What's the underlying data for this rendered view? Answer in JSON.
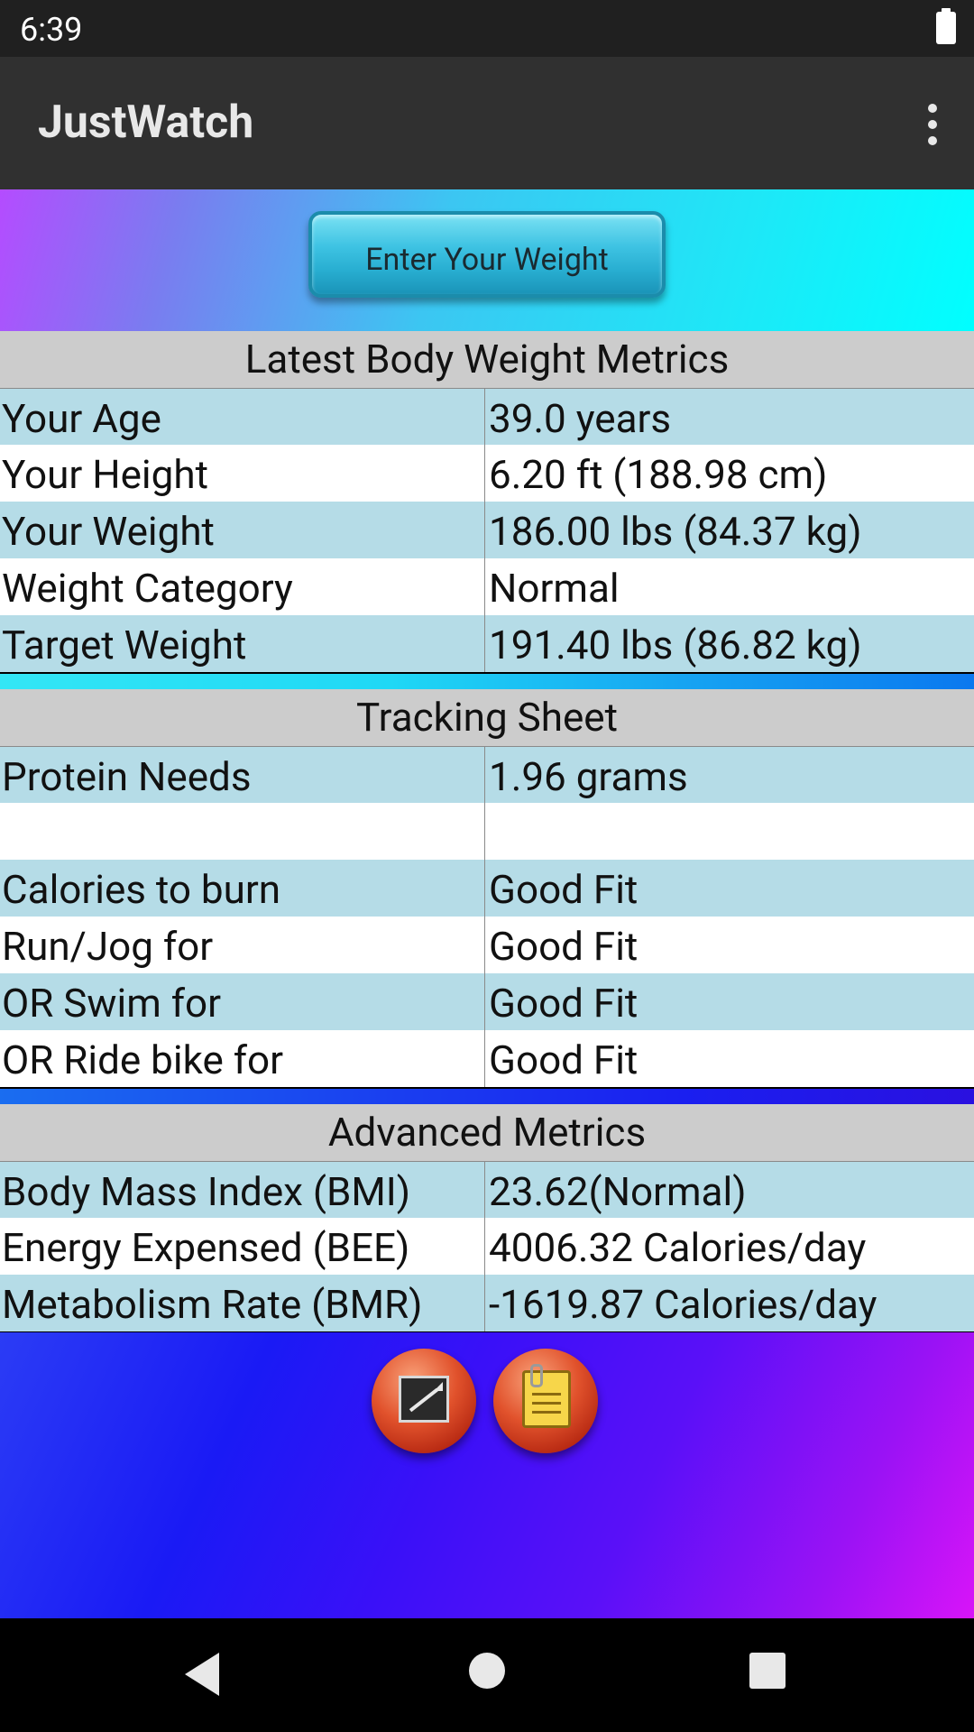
{
  "status_bar": {
    "time": "6:39"
  },
  "app_bar": {
    "title": "JustWatch"
  },
  "enter_weight_button": "Enter Your Weight",
  "sections": {
    "latest": {
      "title": "Latest Body Weight Metrics",
      "rows": [
        {
          "label": "Your Age",
          "value": "39.0 years"
        },
        {
          "label": "Your Height",
          "value": "6.20 ft (188.98 cm)"
        },
        {
          "label": "Your Weight",
          "value": "186.00 lbs (84.37 kg)"
        },
        {
          "label": "Weight Category",
          "value": "Normal"
        },
        {
          "label": "Target Weight",
          "value": "191.40 lbs (86.82 kg)"
        }
      ]
    },
    "tracking": {
      "title": "Tracking Sheet",
      "rows": [
        {
          "label": "Protein Needs",
          "value": "1.96 grams"
        },
        {
          "label": "",
          "value": ""
        },
        {
          "label": "Calories to burn",
          "value": "Good Fit"
        },
        {
          "label": "Run/Jog for",
          "value": "Good Fit"
        },
        {
          "label": "OR Swim for",
          "value": "Good Fit"
        },
        {
          "label": "OR Ride bike for",
          "value": "Good Fit"
        }
      ]
    },
    "advanced": {
      "title": "Advanced Metrics",
      "rows": [
        {
          "label": "Body Mass Index (BMI)",
          "value": "23.62(Normal)"
        },
        {
          "label": "Energy Expensed (BEE)",
          "value": "4006.32 Calories/day"
        },
        {
          "label": "Metabolism Rate (BMR)",
          "value": "-1619.87 Calories/day"
        }
      ]
    }
  },
  "icons": {
    "chart_button": "chart-icon",
    "notes_button": "notes-icon"
  }
}
